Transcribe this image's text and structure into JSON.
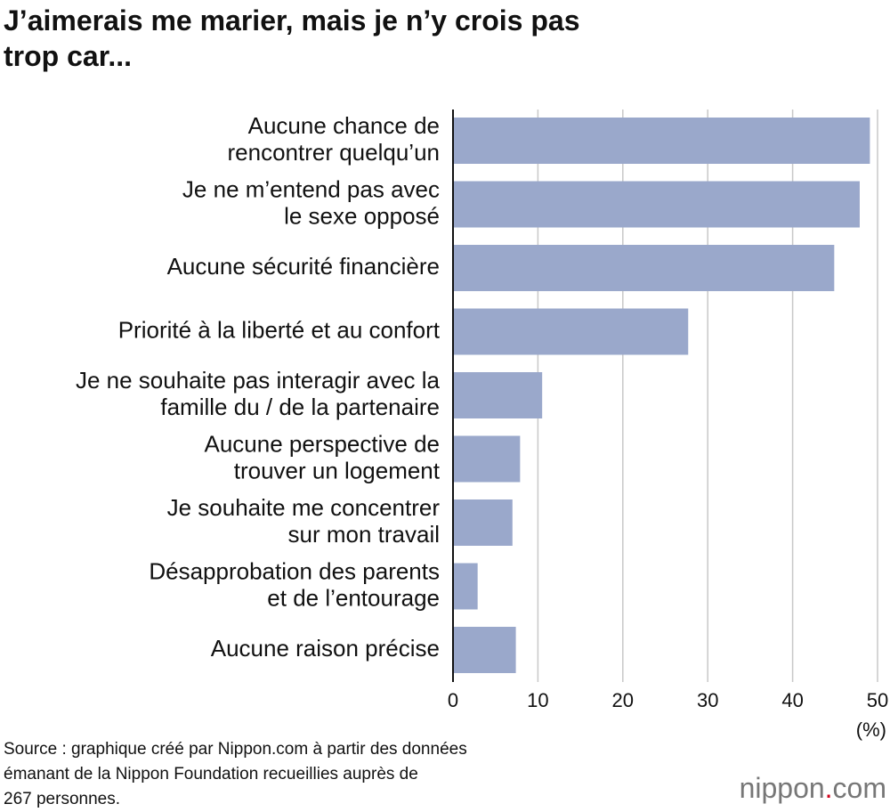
{
  "chart_data": {
    "type": "hbar",
    "title": "J’aimerais me marier, mais je n’y crois pas\ntrop car...",
    "categories": [
      "Aucune chance de\nrencontrer quelqu’un",
      "Je ne m’entend pas avec\nle sexe opposé",
      "Aucune sécurité financière",
      "Priorité à la liberté et au confort",
      "Je ne souhaite pas interagir avec la\nfamille du / de la partenaire",
      "Aucune perspective de\ntrouver un logement",
      "Je souhaite me concentrer\nsur mon travail",
      "Désapprobation des parents\net de l’entourage",
      "Aucune raison précise"
    ],
    "values": [
      49.1,
      47.9,
      44.9,
      27.7,
      10.5,
      7.9,
      7.0,
      2.9,
      7.4
    ],
    "color": "#9aa8cb",
    "xlim": [
      0,
      50
    ],
    "xticks": [
      0,
      10,
      20,
      30,
      40,
      50
    ],
    "grid": true,
    "x_label": "(%)",
    "source": "Source : graphique créé par Nippon.com à partir des données\némanant de la Nippon Foundation recueillies auprès de\n267 personnes.",
    "logo": "nippon.com"
  }
}
